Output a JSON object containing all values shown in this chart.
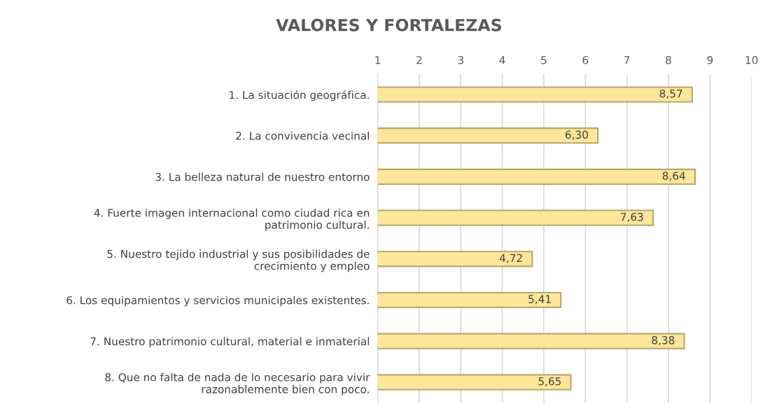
{
  "chart_data": {
    "type": "bar",
    "orientation": "horizontal",
    "title": "VALORES Y FORTALEZAS",
    "categories": [
      "1. La situación geográfica.",
      "2. La convivencia vecinal",
      "3. La belleza natural de nuestro entorno",
      "4. Fuerte imagen internacional como ciudad rica en\npatrimonio cultural.",
      "5. Nuestro tejido industrial y sus posibilidades de\ncrecimiento y empleo",
      "6. Los equipamientos y servicios municipales existentes.",
      "7. Nuestro patrimonio cultural, material e inmaterial",
      "8. Que no falta de nada de lo necesario para vivir\nrazonablemente bien con poco."
    ],
    "values": [
      8.57,
      6.3,
      8.64,
      7.63,
      4.72,
      5.41,
      8.38,
      5.65
    ],
    "value_labels": [
      "8,57",
      "6,30",
      "8,64",
      "7,63",
      "4,72",
      "5,41",
      "8,38",
      "5,65"
    ],
    "color": "#ffe699",
    "xlim": [
      1,
      10
    ],
    "xticks": [
      1,
      2,
      3,
      4,
      5,
      6,
      7,
      8,
      9,
      10
    ],
    "grid": "x",
    "legend": false
  }
}
